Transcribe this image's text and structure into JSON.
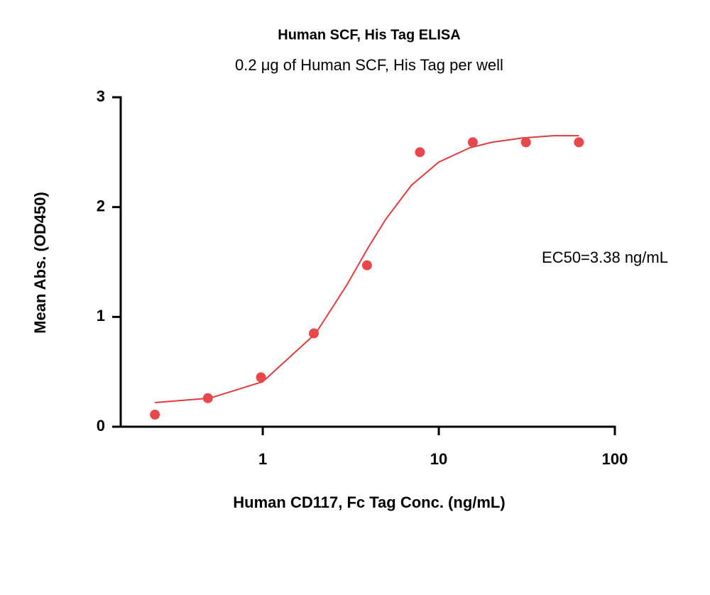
{
  "chart_data": {
    "type": "scatter",
    "title": "Human SCF, His Tag ELISA",
    "subtitle": "0.2 μg of Human SCF, His Tag per well",
    "x_label": "Human CD117, Fc Tag Conc. (ng/mL)",
    "y_label": "Mean Abs. (OD450)",
    "annotation": "EC50=3.38 ng/mL",
    "x_log": true,
    "xlim": [
      0.156,
      100
    ],
    "xticks": [
      1,
      10,
      100
    ],
    "ylim": [
      0,
      3
    ],
    "yticks": [
      0,
      1,
      2,
      3
    ],
    "points": {
      "color": "#e8474c",
      "x": [
        0.244,
        0.488,
        0.977,
        1.95,
        3.91,
        7.81,
        15.6,
        31.25,
        62.5
      ],
      "values": [
        0.11,
        0.26,
        0.45,
        0.85,
        1.47,
        2.5,
        2.59,
        2.59,
        2.59
      ]
    },
    "fit": {
      "color": "#e03c3c",
      "x": [
        0.244,
        0.5,
        1,
        2,
        3,
        4,
        5,
        7,
        10,
        15,
        20,
        30,
        45,
        62.5
      ],
      "values": [
        0.22,
        0.26,
        0.41,
        0.85,
        1.29,
        1.64,
        1.89,
        2.2,
        2.41,
        2.54,
        2.59,
        2.63,
        2.65,
        2.65
      ]
    }
  }
}
